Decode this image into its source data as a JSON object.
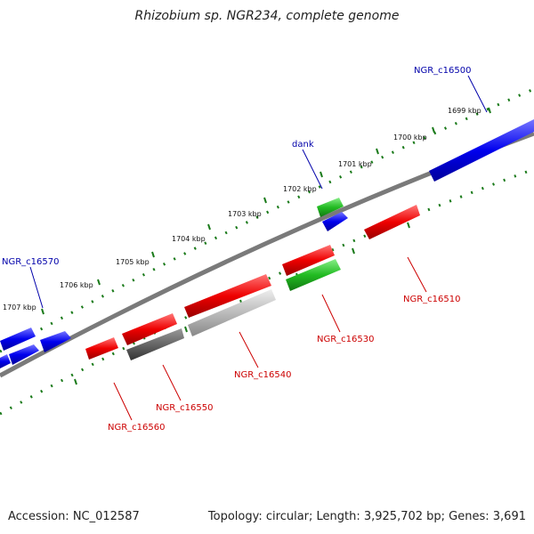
{
  "title": "Rhizobium sp. NGR234, complete genome",
  "footer": {
    "accession": "Accession: NC_012587",
    "topology": "Topology: circular; Length: 3,925,702 bp; Genes: 3,691"
  },
  "colors": {
    "forward_gene": "#0000ee",
    "reverse_gene": "#ee0000",
    "rna_gene": "#22bb22",
    "pseudogene": "#666666",
    "backbone": "#888888",
    "tick": "#1a7a1a",
    "label_blue": "#0000aa",
    "label_red": "#cc0000"
  },
  "scale_labels": [
    "1699 kbp",
    "1700 kbp",
    "1701 kbp",
    "1702 kbp",
    "1703 kbp",
    "1704 kbp",
    "1705 kbp",
    "1706 kbp",
    "1707 kbp"
  ],
  "gene_labels": [
    "NGR_c16500",
    "dank",
    "NGR_c16570",
    "NGR_c16510",
    "NGR_c16530",
    "NGR_c16540",
    "NGR_c16550",
    "NGR_c16560"
  ]
}
